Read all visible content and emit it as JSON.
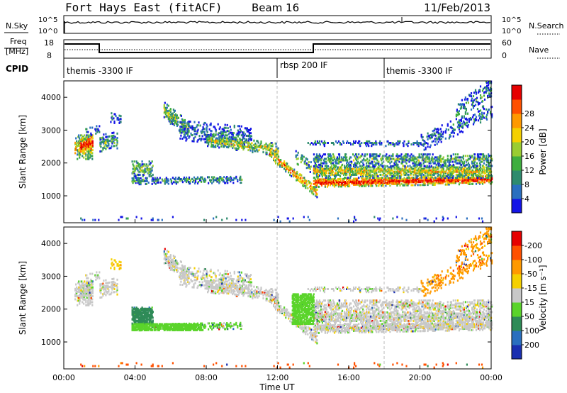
{
  "header": {
    "title": "Fort Hays East (fitACF)",
    "beam": "Beam 16",
    "date": "11/Feb/2013"
  },
  "noise_panel": {
    "left_label": "N.Sky",
    "left_ticks": [
      "10^5",
      "10^0"
    ],
    "right_ticks": [
      "10^5",
      "10^0"
    ],
    "right_label": "N.Search"
  },
  "freq_panel": {
    "left_label_line1": "Freq",
    "left_label_line2": "[MHz]",
    "left_ticks": [
      "18",
      "8"
    ],
    "right_ticks": [
      "60",
      "0"
    ],
    "right_label": "Nave"
  },
  "cpid": {
    "label": "CPID",
    "segments": [
      {
        "name": "themis -3300 IF",
        "start_hour": 0
      },
      {
        "name": "rbsp 200 IF",
        "start_hour": 12
      },
      {
        "name": "themis -3300 IF",
        "start_hour": 18
      }
    ]
  },
  "chart_data": [
    {
      "type": "heatmap",
      "name": "power",
      "ylabel": "Slant Range [km]",
      "ylim": [
        180,
        4500
      ],
      "yticks": [
        "1000",
        "2000",
        "3000",
        "4000"
      ],
      "xlim_hours": [
        0,
        24
      ],
      "colorbar": {
        "label": "Power [dB]",
        "ticks": [
          "4",
          "8",
          "12",
          "16",
          "20",
          "24",
          "28"
        ],
        "colors": [
          "#1414e6",
          "#2a6fbf",
          "#2e8b6e",
          "#3fae3f",
          "#9acd32",
          "#f5d000",
          "#ff9900",
          "#ff5000",
          "#e60000"
        ]
      }
    },
    {
      "type": "heatmap",
      "name": "velocity",
      "ylabel": "Slant Range [km]",
      "ylim": [
        180,
        4500
      ],
      "yticks": [
        "1000",
        "2000",
        "3000",
        "4000"
      ],
      "xlim_hours": [
        0,
        24
      ],
      "colorbar": {
        "label": "Velocity [m s⁻¹]",
        "ticks": [
          "200",
          "100",
          "50",
          "15",
          "-15",
          "-50",
          "-100",
          "-200"
        ],
        "colors": [
          "#1a2fb0",
          "#2a6fbf",
          "#2e8b57",
          "#5ad42a",
          "#c8c8c8",
          "#f5d000",
          "#ff9900",
          "#ff5000",
          "#e60000"
        ]
      }
    }
  ],
  "x_axis": {
    "label": "Time UT",
    "ticks": [
      "00:00",
      "04:00",
      "08:00",
      "12:00",
      "16:00",
      "20:00",
      "00:00"
    ]
  }
}
